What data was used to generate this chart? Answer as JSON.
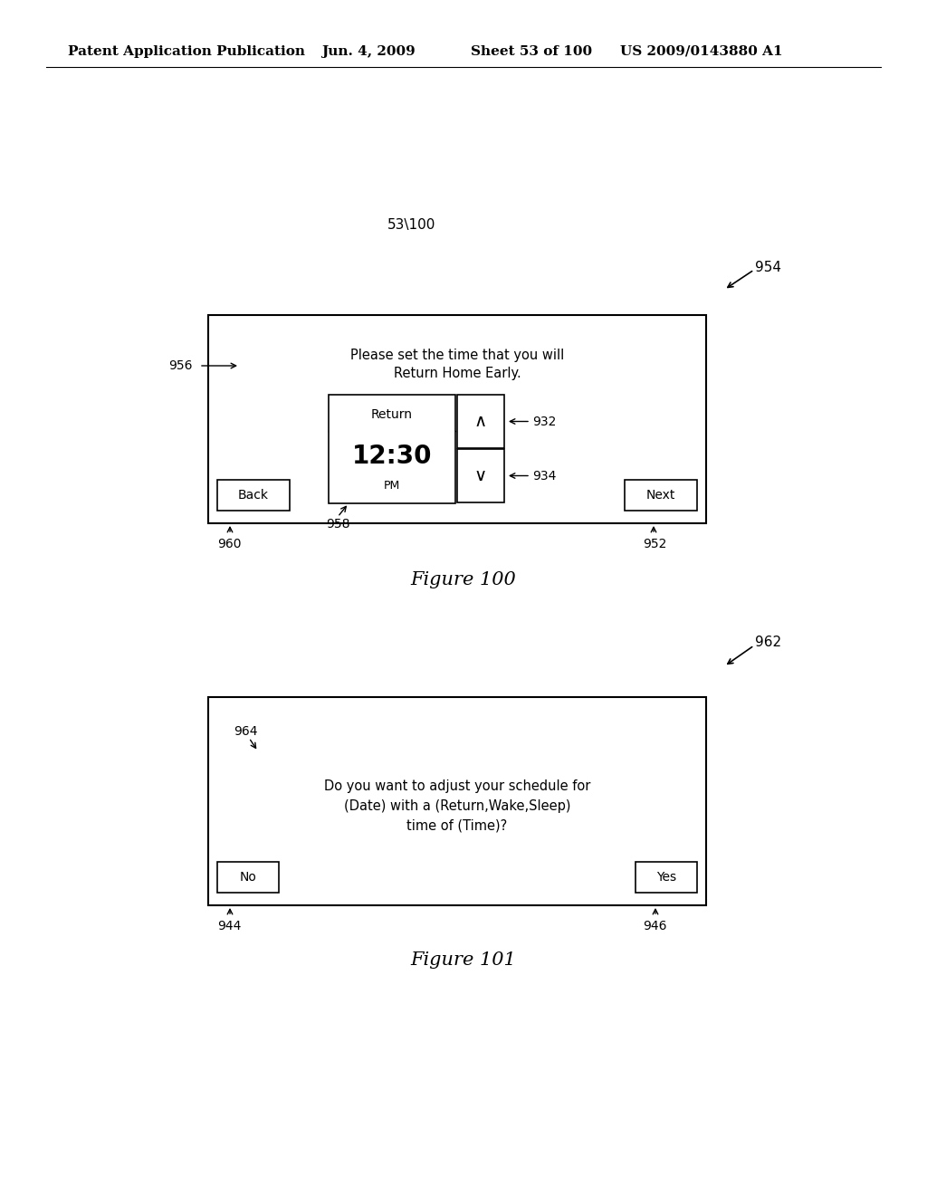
{
  "bg_color": "#ffffff",
  "header_text": "Patent Application Publication",
  "header_date": "Jun. 4, 2009",
  "header_sheet": "Sheet 53 of 100",
  "header_patent": "US 2009/0143880 A1",
  "sheet_label": "53\\100",
  "fig100_label": "Figure 100",
  "fig101_label": "Figure 101",
  "fig100_ref": "954",
  "label_956": "956",
  "text_956_line1": "Please set the time that you will",
  "text_956_line2": "Return Home Early.",
  "inner_box_label": "Return",
  "time_display": "12:30",
  "time_ampm": "PM",
  "up_arrow_ref": "932",
  "down_arrow_ref": "934",
  "arrow_958_ref": "958",
  "back_button": "Back",
  "next_button": "Next",
  "back_ref": "960",
  "next_ref": "952",
  "fig101_ref": "962",
  "label_964": "964",
  "text_101_line1": "Do you want to adjust your schedule for",
  "text_101_line2": "(Date) with a (Return,Wake,Sleep)",
  "text_101_line3": "time of (Time)?",
  "no_button": "No",
  "yes_button": "Yes",
  "no_ref": "944",
  "yes_ref": "946"
}
